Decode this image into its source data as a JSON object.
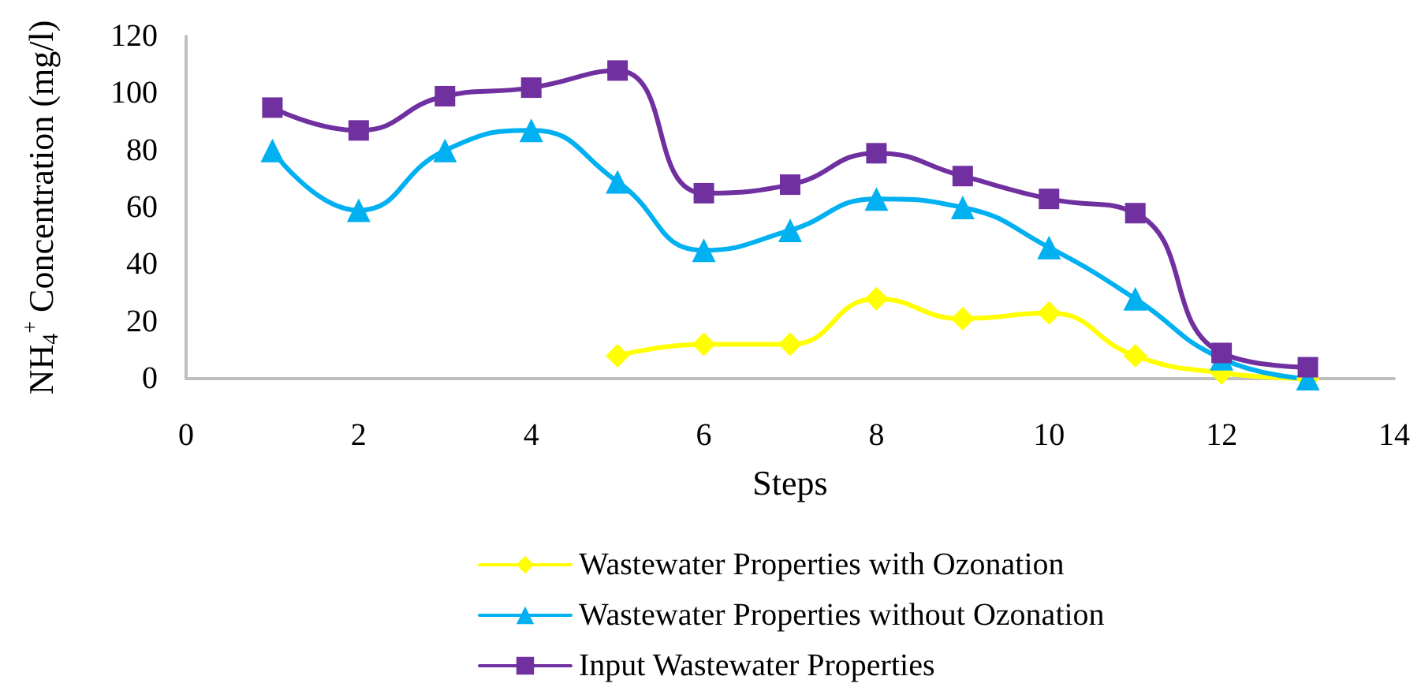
{
  "chart_data": {
    "type": "line",
    "xlabel": "Steps",
    "ylabel": "NH$_{4}$$^{+}$ Concentration (mg/l)",
    "x": [
      1,
      2,
      3,
      4,
      5,
      6,
      7,
      8,
      9,
      10,
      11,
      12,
      13
    ],
    "series": [
      {
        "name": "Wastewater Properties with Ozonation",
        "color": "#ffff00",
        "marker": "diamond",
        "values": [
          null,
          null,
          null,
          null,
          8,
          12,
          12,
          28,
          21,
          23,
          8,
          2,
          0
        ]
      },
      {
        "name": "Wastewater Properties without Ozonation",
        "color": "#00b0f0",
        "marker": "triangle",
        "values": [
          80,
          59,
          80,
          87,
          69,
          45,
          52,
          63,
          60,
          46,
          28,
          7,
          0
        ]
      },
      {
        "name": "Input Wastewater Properties",
        "color": "#7030a0",
        "marker": "square",
        "values": [
          95,
          87,
          99,
          102,
          108,
          65,
          68,
          79,
          71,
          63,
          58,
          9,
          4
        ]
      }
    ],
    "xlim": [
      0,
      14
    ],
    "xticks": [
      0,
      2,
      4,
      6,
      8,
      10,
      12,
      14
    ],
    "ylim": [
      0,
      120
    ],
    "yticks": [
      0,
      20,
      40,
      60,
      80,
      100,
      120
    ],
    "grid": false,
    "legend": "bottom",
    "line_style": "solid"
  }
}
